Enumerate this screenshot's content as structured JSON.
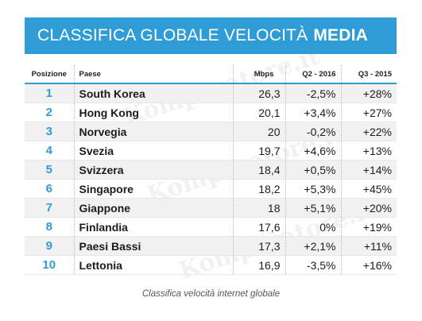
{
  "banner": {
    "title_light": "CLASSIFICA GLOBALE VELOCITÀ",
    "title_bold": "MEDIA"
  },
  "watermark_text": "Komparatore.it",
  "table": {
    "headers": {
      "pos": "Posizione",
      "paese": "Paese",
      "mbps": "Mbps",
      "q2": "Q2 - 2016",
      "q3": "Q3 - 2015"
    },
    "rows": [
      {
        "pos": "1",
        "paese": "South Korea",
        "mbps": "26,3",
        "q2": "-2,5%",
        "q3": "+28%"
      },
      {
        "pos": "2",
        "paese": "Hong Kong",
        "mbps": "20,1",
        "q2": "+3,4%",
        "q3": "+27%"
      },
      {
        "pos": "3",
        "paese": "Norvegia",
        "mbps": "20",
        "q2": "-0,2%",
        "q3": "+22%"
      },
      {
        "pos": "4",
        "paese": "Svezia",
        "mbps": "19,7",
        "q2": "+4,6%",
        "q3": "+13%"
      },
      {
        "pos": "5",
        "paese": "Svizzera",
        "mbps": "18,4",
        "q2": "+0,5%",
        "q3": "+14%"
      },
      {
        "pos": "6",
        "paese": "Singapore",
        "mbps": "18,2",
        "q2": "+5,3%",
        "q3": "+45%"
      },
      {
        "pos": "7",
        "paese": "Giappone",
        "mbps": "18",
        "q2": "+5,1%",
        "q3": "+20%"
      },
      {
        "pos": "8",
        "paese": "Finlandia",
        "mbps": "17,6",
        "q2": "0%",
        "q3": "+19%"
      },
      {
        "pos": "9",
        "paese": "Paesi Bassi",
        "mbps": "17,3",
        "q2": "+2,1%",
        "q3": "+11%"
      },
      {
        "pos": "10",
        "paese": "Lettonia",
        "mbps": "16,9",
        "q2": "-3,5%",
        "q3": "+16%"
      }
    ]
  },
  "caption": "Classifica velocità internet globale",
  "colors": {
    "accent": "#2f9cd6",
    "row_stripe": "#f1f1f1"
  }
}
